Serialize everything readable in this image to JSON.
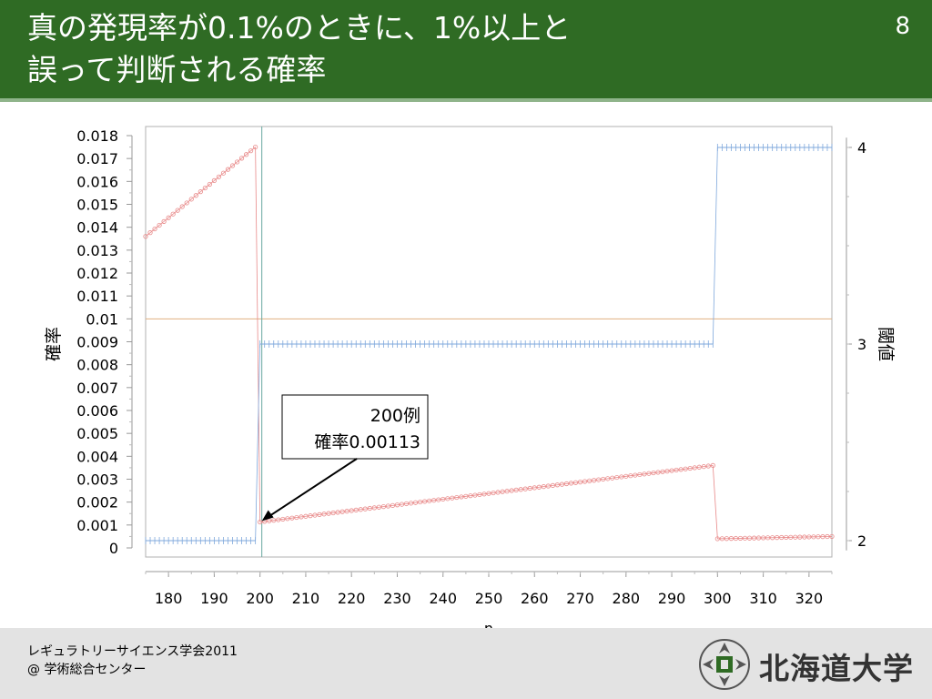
{
  "slide": {
    "title_line1": "真の発現率が0.1%のときに、1%以上と",
    "title_line2": "誤って判断される確率",
    "page_number": "8"
  },
  "footer": {
    "line1": "レギュラトリーサイエンス学会2011",
    "line2": "@ 学術総合センター",
    "logo_text": "北海道大学"
  },
  "colors": {
    "header_bg": "#2f6b24",
    "probability_series": "#e88a8a",
    "threshold_series": "#7fa8dc",
    "reference_line": "#e0b080"
  },
  "chart_data": {
    "type": "line",
    "xlabel": "n",
    "ylabel_left": "確率",
    "ylabel_right": "閾値",
    "x_range": [
      175,
      325
    ],
    "x_ticks": [
      180,
      190,
      200,
      210,
      220,
      230,
      240,
      250,
      260,
      270,
      280,
      290,
      300,
      310,
      320
    ],
    "y_left_range": [
      0,
      0.018
    ],
    "y_left_ticks": [
      "0",
      "0.001",
      "0.002",
      "0.003",
      "0.004",
      "0.005",
      "0.006",
      "0.007",
      "0.008",
      "0.009",
      "0.01",
      "0.011",
      "0.012",
      "0.013",
      "0.014",
      "0.015",
      "0.016",
      "0.017",
      "0.018"
    ],
    "y_right_range": [
      1.95,
      4.05
    ],
    "y_right_ticks": [
      "2",
      "3",
      "4"
    ],
    "reference_line_y": 0.01,
    "vertical_marker_x": 200,
    "annotation": {
      "line1": "200例",
      "line2": "確率0.00113",
      "x": 200,
      "y": 0.00113
    },
    "series": [
      {
        "axis": "left",
        "marker": "circle",
        "segments": [
          {
            "x_start": 175,
            "x_end": 199,
            "y_start": 0.0136,
            "y_end": 0.0175
          },
          {
            "x_start": 200,
            "x_end": 299,
            "y_start": 0.00113,
            "y_end": 0.0036
          },
          {
            "x_start": 300,
            "x_end": 325,
            "y_start": 0.0004,
            "y_end": 0.0005
          }
        ]
      },
      {
        "axis": "right",
        "marker": "plus",
        "segments": [
          {
            "x_start": 175,
            "x_end": 199,
            "y": 2
          },
          {
            "x_start": 200,
            "x_end": 299,
            "y": 3
          },
          {
            "x_start": 300,
            "x_end": 325,
            "y": 4
          }
        ]
      }
    ]
  }
}
